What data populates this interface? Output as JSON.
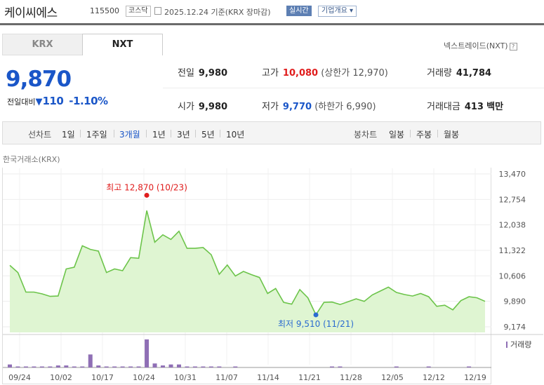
{
  "header": {
    "name": "케이씨에스",
    "code": "115500",
    "market": "코스닥",
    "date_text": "2025.12.24 기준(KRX 장마감)",
    "realtime_label": "실시간",
    "company_info_label": "기업개요"
  },
  "tabs": {
    "krx": "KRX",
    "nxt": "NXT"
  },
  "nxt_link": "넥스트레이드(NXT)",
  "nxt_help": "?",
  "quote": {
    "price": "9,870",
    "change_label": "전일대비",
    "change_arrow": "▼",
    "change_value": "110",
    "change_rate": "-1.10%"
  },
  "summary": {
    "prev_close": {
      "label": "전일",
      "value": "9,980"
    },
    "high": {
      "label": "고가",
      "value": "10,080",
      "sub": "(상한가 12,970)"
    },
    "volume": {
      "label": "거래량",
      "value": "41,784"
    },
    "open": {
      "label": "시가",
      "value": "9,980"
    },
    "low": {
      "label": "저가",
      "value": "9,770",
      "sub": "(하한가 6,990)"
    },
    "amount": {
      "label": "거래대금",
      "value": "413",
      "unit": "백만"
    }
  },
  "toolbar": {
    "line_chart_label": "선차트",
    "periods": [
      "1일",
      "1주일",
      "3개월",
      "1년",
      "3년",
      "5년",
      "10년"
    ],
    "active_period": "3개월",
    "candle_chart_label": "봉차트",
    "candle_periods": [
      "일봉",
      "주봉",
      "월봉"
    ]
  },
  "chart_source": "한국거래소(KRX)",
  "chart_data": {
    "type": "area",
    "y_ticks": [
      "13,470",
      "12,754",
      "12,038",
      "11,322",
      "10,606",
      "9,890",
      "9,174"
    ],
    "ylim": [
      9174,
      13470
    ],
    "x_ticks": [
      "09/24",
      "10/02",
      "10/17",
      "10/24",
      "10/31",
      "11/07",
      "11/14",
      "11/21",
      "11/28",
      "12/05",
      "12/12",
      "12/19"
    ],
    "max_label": "최고 12,870 (10/23)",
    "min_label": "최저 9,510 (11/21)",
    "max": {
      "index": 17,
      "value": 12870
    },
    "min": {
      "index": 38,
      "value": 9510
    },
    "volume_label": "거래량",
    "price_values": [
      10900,
      10700,
      10150,
      10150,
      10100,
      10030,
      10040,
      10800,
      10850,
      11450,
      11350,
      11300,
      10700,
      10800,
      10750,
      11120,
      11100,
      12440,
      11550,
      11760,
      11630,
      11860,
      11380,
      11380,
      11400,
      11200,
      10650,
      10910,
      10600,
      10730,
      10640,
      10560,
      10110,
      10250,
      9860,
      9810,
      10220,
      9990,
      9510,
      9860,
      9870,
      9800,
      9880,
      9960,
      9890,
      10070,
      10180,
      10290,
      10140,
      10080,
      10040,
      10110,
      10020,
      9750,
      9780,
      9650,
      9910,
      10020,
      9990,
      9890
    ],
    "volume_values": [
      3,
      1,
      1,
      1,
      1,
      1,
      2,
      2,
      1,
      1,
      13,
      2,
      1,
      1,
      1,
      1,
      1,
      28,
      4,
      2,
      3,
      3,
      1,
      1,
      1,
      1,
      1,
      0,
      1,
      0,
      0,
      0,
      0,
      0,
      0,
      0,
      0,
      0,
      0,
      0,
      1,
      1,
      0,
      0,
      0,
      0,
      0,
      0,
      1,
      0,
      0,
      0,
      1,
      0,
      0,
      0,
      0,
      1,
      0,
      0
    ],
    "line_color": "#6cc44a",
    "fill_color": "#dff5d2",
    "volume_color": "#8f6fb5",
    "max_color": "#e01c1c",
    "min_color": "#2a6bd0"
  }
}
